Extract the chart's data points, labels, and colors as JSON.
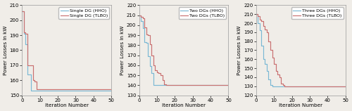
{
  "subplots": [
    {
      "legend": [
        "Single DG (HHO)",
        "Single DG (TLBO)"
      ],
      "colors": [
        "#7ab8d4",
        "#c97070"
      ],
      "ylim": [
        150,
        210
      ],
      "yticks": [
        150,
        160,
        170,
        180,
        190,
        200,
        210
      ],
      "xlim": [
        0,
        50
      ],
      "xticks": [
        0,
        10,
        20,
        30,
        40,
        50
      ],
      "hho_x": [
        0,
        1,
        2,
        3,
        4,
        5,
        6,
        7,
        8,
        9,
        50
      ],
      "hho_y": [
        206,
        191,
        184,
        164,
        164,
        153,
        153,
        153,
        153,
        153,
        153
      ],
      "tlbo_x": [
        0,
        1,
        2,
        3,
        4,
        5,
        6,
        7,
        8,
        9,
        10,
        50
      ],
      "tlbo_y": [
        206,
        192,
        191,
        170,
        170,
        170,
        160,
        159,
        154,
        154,
        154,
        154
      ]
    },
    {
      "legend": [
        "Two DGs (HHO)",
        "Two DGs (TLBO)"
      ],
      "colors": [
        "#7ab8d4",
        "#c97070"
      ],
      "ylim": [
        130,
        220
      ],
      "yticks": [
        130,
        140,
        150,
        160,
        170,
        180,
        190,
        200,
        210,
        220
      ],
      "xlim": [
        0,
        50
      ],
      "xticks": [
        0,
        10,
        20,
        30,
        40,
        50
      ],
      "hho_x": [
        0,
        1,
        2,
        3,
        4,
        5,
        6,
        7,
        8,
        9,
        10,
        11,
        50
      ],
      "hho_y": [
        210,
        204,
        197,
        183,
        182,
        169,
        159,
        152,
        140,
        140,
        140,
        140,
        140
      ],
      "tlbo_x": [
        0,
        1,
        2,
        3,
        4,
        5,
        6,
        7,
        8,
        9,
        10,
        11,
        12,
        13,
        14,
        15,
        50
      ],
      "tlbo_y": [
        210,
        208,
        207,
        198,
        191,
        190,
        181,
        170,
        160,
        155,
        153,
        152,
        150,
        145,
        141,
        140,
        140
      ]
    },
    {
      "legend": [
        "Three DGs (HHO)",
        "Three DGs (TLBO)"
      ],
      "colors": [
        "#7ab8d4",
        "#c97070"
      ],
      "ylim": [
        120,
        220
      ],
      "yticks": [
        120,
        130,
        140,
        150,
        160,
        170,
        180,
        190,
        200,
        210,
        220
      ],
      "xlim": [
        0,
        50
      ],
      "xticks": [
        0,
        10,
        20,
        30,
        40,
        50
      ],
      "hho_x": [
        0,
        1,
        2,
        3,
        4,
        5,
        6,
        7,
        8,
        9,
        10,
        11,
        50
      ],
      "hho_y": [
        210,
        200,
        192,
        175,
        160,
        155,
        147,
        138,
        131,
        130,
        130,
        130,
        130
      ],
      "tlbo_x": [
        0,
        1,
        2,
        3,
        4,
        5,
        6,
        7,
        8,
        9,
        10,
        11,
        12,
        13,
        14,
        15,
        16,
        50
      ],
      "tlbo_y": [
        210,
        208,
        204,
        202,
        197,
        193,
        190,
        180,
        170,
        162,
        155,
        147,
        143,
        140,
        133,
        131,
        130,
        130
      ]
    }
  ],
  "xlabel": "Iteration Number",
  "ylabel": "Power Losses in kW",
  "bg_color": "#f0ede8",
  "line_width": 0.85,
  "font_size": 5.2,
  "legend_font_size": 4.5,
  "tick_labelsize": 5.0
}
